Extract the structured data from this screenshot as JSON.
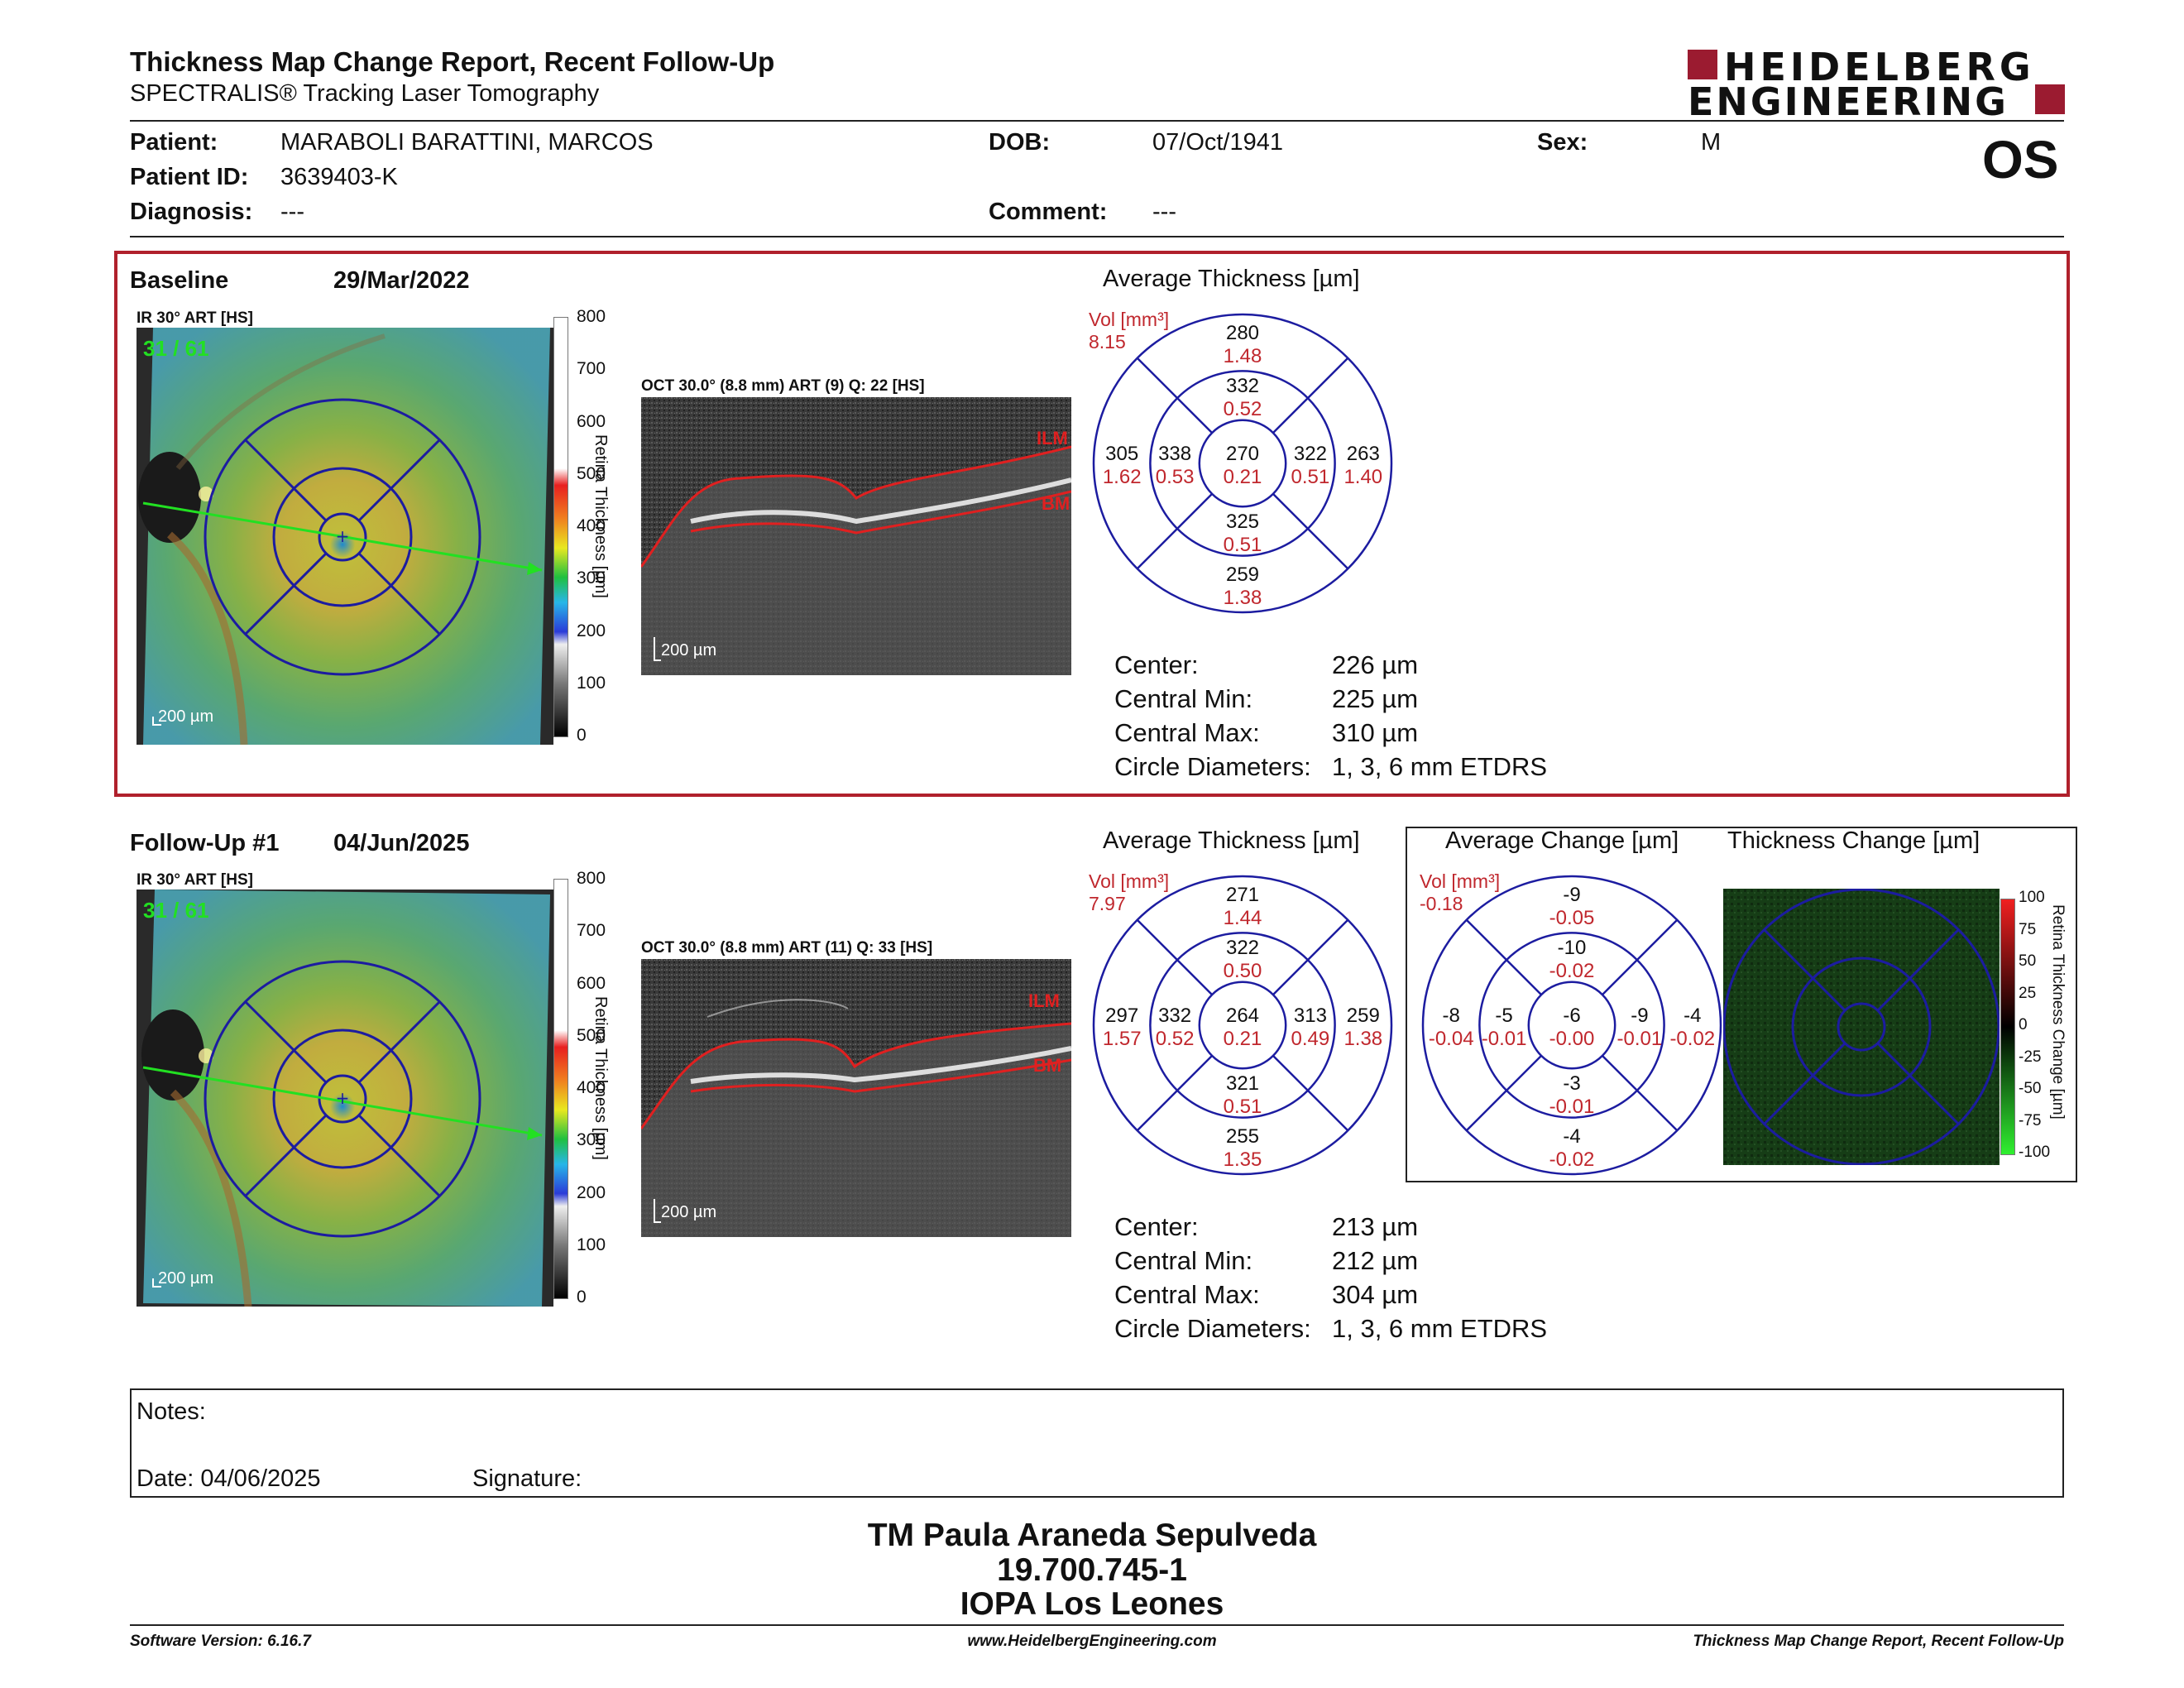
{
  "header": {
    "title": "Thickness Map Change Report, Recent Follow-Up",
    "subtitle": "SPECTRALIS® Tracking Laser Tomography",
    "logo_line1": "HEIDELBERG",
    "logo_line2": "ENGINEERING",
    "eye": "OS"
  },
  "patient": {
    "patient_label": "Patient:",
    "patient_value": "MARABOLI  BARATTINI, MARCOS",
    "id_label": "Patient ID:",
    "id_value": "3639403-K",
    "diagnosis_label": "Diagnosis:",
    "diagnosis_value": "---",
    "dob_label": "DOB:",
    "dob_value": "07/Oct/1941",
    "comment_label": "Comment:",
    "comment_value": "---",
    "sex_label": "Sex:",
    "sex_value": "M"
  },
  "colorbar_ticks": [
    "800",
    "700",
    "600",
    "500",
    "400",
    "300",
    "200",
    "100",
    "0"
  ],
  "colorbar_title": "Retina Thickness [µm]",
  "baseline": {
    "label": "Baseline",
    "date": "29/Mar/2022",
    "ir_label": "IR 30° ART [HS]",
    "ir_counter": "31 / 61",
    "ir_scale": "200 µm",
    "oct_label": "OCT 30.0° (8.8 mm) ART (9) Q: 22 [HS]",
    "oct_scale": "200 µm",
    "ilm": "ILM",
    "bm": "BM",
    "avg_title": "Average Thickness [µm]",
    "vol_label": "Vol [mm³]",
    "vol_value": "8.15",
    "grid": {
      "outer_top": [
        "280",
        "1.48"
      ],
      "inner_top": [
        "332",
        "0.52"
      ],
      "outer_left": [
        "305",
        "1.62"
      ],
      "inner_left": [
        "338",
        "0.53"
      ],
      "center": [
        "270",
        "0.21"
      ],
      "inner_right": [
        "322",
        "0.51"
      ],
      "outer_right": [
        "263",
        "1.40"
      ],
      "inner_bottom": [
        "325",
        "0.51"
      ],
      "outer_bottom": [
        "259",
        "1.38"
      ]
    },
    "stats": [
      {
        "label": "Center:",
        "value": "226 µm"
      },
      {
        "label": "Central Min:",
        "value": "225 µm"
      },
      {
        "label": "Central Max:",
        "value": "310 µm"
      },
      {
        "label": "Circle Diameters:",
        "value": "1, 3, 6 mm ETDRS"
      }
    ]
  },
  "followup": {
    "label": "Follow-Up #1",
    "date": "04/Jun/2025",
    "ir_label": "IR 30° ART [HS]",
    "ir_counter": "31 / 61",
    "ir_scale": "200 µm",
    "oct_label": "OCT 30.0° (8.8 mm) ART (11) Q: 33 [HS]",
    "oct_scale": "200 µm",
    "ilm": "ILM",
    "bm": "BM",
    "avg_title": "Average Thickness [µm]",
    "vol_label": "Vol [mm³]",
    "vol_value": "7.97",
    "grid": {
      "outer_top": [
        "271",
        "1.44"
      ],
      "inner_top": [
        "322",
        "0.50"
      ],
      "outer_left": [
        "297",
        "1.57"
      ],
      "inner_left": [
        "332",
        "0.52"
      ],
      "center": [
        "264",
        "0.21"
      ],
      "inner_right": [
        "313",
        "0.49"
      ],
      "outer_right": [
        "259",
        "1.38"
      ],
      "inner_bottom": [
        "321",
        "0.51"
      ],
      "outer_bottom": [
        "255",
        "1.35"
      ]
    },
    "stats": [
      {
        "label": "Center:",
        "value": "213 µm"
      },
      {
        "label": "Central Min:",
        "value": "212 µm"
      },
      {
        "label": "Central Max:",
        "value": "304 µm"
      },
      {
        "label": "Circle Diameters:",
        "value": "1, 3, 6 mm ETDRS"
      }
    ],
    "change_title": "Average Change [µm]",
    "change_vol_label": "Vol [mm³]",
    "change_vol_value": "-0.18",
    "change_grid": {
      "outer_top": [
        "-9",
        "-0.05"
      ],
      "inner_top": [
        "-10",
        "-0.02"
      ],
      "outer_left": [
        "-8",
        "-0.04"
      ],
      "inner_left": [
        "-5",
        "-0.01"
      ],
      "center": [
        "-6",
        "-0.00"
      ],
      "inner_right": [
        "-9",
        "-0.01"
      ],
      "outer_right": [
        "-4",
        "-0.02"
      ],
      "inner_bottom": [
        "-3",
        "-0.01"
      ],
      "outer_bottom": [
        "-4",
        "-0.02"
      ]
    },
    "thick_change_title": "Thickness Change [µm]",
    "change_ticks": [
      "100",
      "75",
      "50",
      "25",
      "0",
      "-25",
      "-50",
      "-75",
      "-100"
    ],
    "change_bar_title": "Retina Thickness Change [µm]"
  },
  "notes": {
    "label": "Notes:",
    "date_label": "Date: 04/06/2025",
    "signature_label": "Signature:"
  },
  "signer": {
    "name": "TM Paula Araneda Sepulveda",
    "rut": "19.700.745-1",
    "place": "IOPA Los Leones"
  },
  "footer": {
    "left": "Software Version: 6.16.7",
    "center": "www.HeidelbergEngineering.com",
    "right": "Thickness Map Change Report, Recent Follow-Up"
  },
  "colors": {
    "accent": "#9b1b30",
    "grid_blue": "#1c1ca0",
    "value_red": "#c0272d"
  }
}
